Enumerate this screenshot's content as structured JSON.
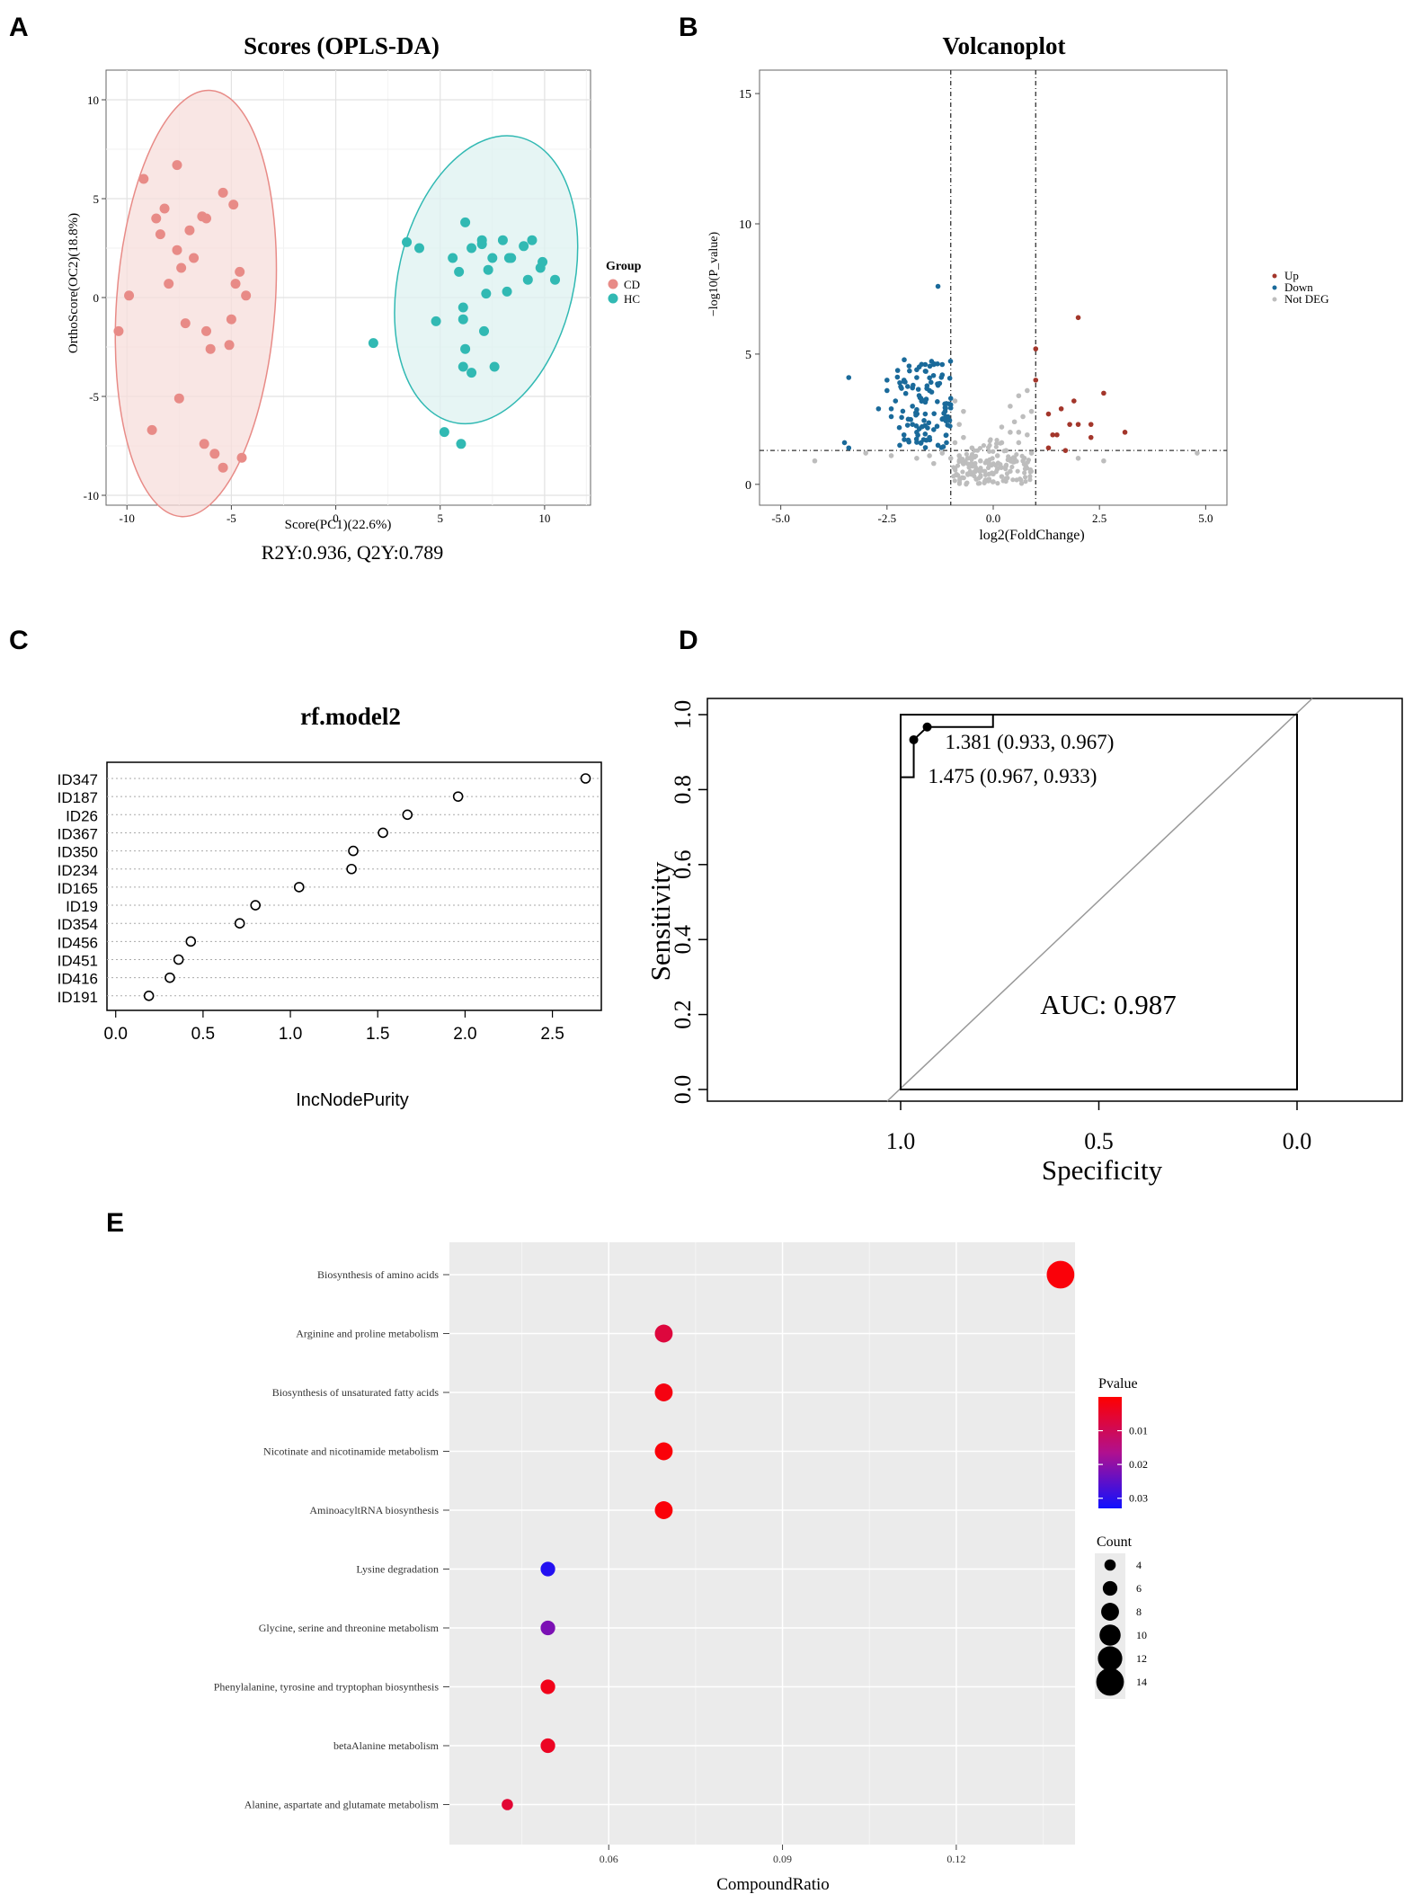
{
  "panel_labels": {
    "a": "A",
    "b": "B",
    "c": "C",
    "d": "D",
    "e": "E"
  },
  "colors": {
    "cd": "#E88B87",
    "hc": "#31B9B3",
    "ellipse_cd_fill": "#F7DDDB",
    "ellipse_hc_fill": "#DDF2F0",
    "up": "#A3362B",
    "down": "#1A6A9A",
    "not_deg": "#BDBDBD",
    "enrich_bg": "#EBEBEB",
    "pv_low": "#FF0000",
    "pv_high": "#1010FF"
  },
  "chart_data": [
    {
      "id": "A",
      "type": "scatter",
      "title": "Scores (OPLS-DA)",
      "xlabel": "Score(PC1)(22.6%)",
      "ylabel": "OrthoScore(OC2)(18.8%)",
      "xlim": [
        -11,
        12.2
      ],
      "ylim": [
        -10.5,
        11.5
      ],
      "xticks": [
        -10,
        -5,
        0,
        5,
        10
      ],
      "xtick_labels": [
        "-10",
        "-5",
        "0",
        "5",
        "10"
      ],
      "yticks": [
        -10,
        -5,
        0,
        5,
        10
      ],
      "ytick_labels": [
        "-10",
        "-5",
        "0",
        "5",
        "10"
      ],
      "grid": true,
      "legend": {
        "title": "Group",
        "position": "right",
        "entries": [
          "CD",
          "HC"
        ]
      },
      "caption": "R2Y:0.936, Q2Y:0.789",
      "ellipses": [
        {
          "group": "CD",
          "cx": -6.7,
          "cy": -0.3,
          "rx": 3.8,
          "ry": 10.8,
          "angle": 4
        },
        {
          "group": "HC",
          "cx": 7.2,
          "cy": 0.9,
          "rx": 4.2,
          "ry": 7.4,
          "angle": 13
        }
      ],
      "series": [
        {
          "name": "CD",
          "points": [
            [
              -9.2,
              6.0
            ],
            [
              -8.6,
              4.0
            ],
            [
              -8.4,
              3.2
            ],
            [
              -8.2,
              4.5
            ],
            [
              -7.6,
              6.7
            ],
            [
              -7.0,
              3.4
            ],
            [
              -7.6,
              2.4
            ],
            [
              -6.8,
              2.0
            ],
            [
              -6.4,
              4.1
            ],
            [
              -6.2,
              4.0
            ],
            [
              -5.4,
              5.3
            ],
            [
              -4.9,
              4.7
            ],
            [
              -7.4,
              1.5
            ],
            [
              -8.0,
              0.7
            ],
            [
              -4.6,
              1.3
            ],
            [
              -4.8,
              0.7
            ],
            [
              -4.3,
              0.1
            ],
            [
              -9.9,
              0.1
            ],
            [
              -10.4,
              -1.7
            ],
            [
              -7.2,
              -1.3
            ],
            [
              -6.2,
              -1.7
            ],
            [
              -6.0,
              -2.6
            ],
            [
              -5.0,
              -1.1
            ],
            [
              -5.1,
              -2.4
            ],
            [
              -7.5,
              -5.1
            ],
            [
              -8.8,
              -6.7
            ],
            [
              -6.3,
              -7.4
            ],
            [
              -5.8,
              -7.9
            ],
            [
              -4.5,
              -8.1
            ],
            [
              -5.4,
              -8.6
            ]
          ]
        },
        {
          "name": "HC",
          "points": [
            [
              1.8,
              -2.3
            ],
            [
              3.4,
              2.8
            ],
            [
              4.0,
              2.5
            ],
            [
              4.8,
              -1.2
            ],
            [
              5.2,
              -6.8
            ],
            [
              5.6,
              2.0
            ],
            [
              5.9,
              1.3
            ],
            [
              6.0,
              -7.4
            ],
            [
              6.2,
              3.8
            ],
            [
              6.5,
              2.5
            ],
            [
              6.1,
              -1.1
            ],
            [
              6.1,
              -0.5
            ],
            [
              6.2,
              -2.6
            ],
            [
              6.1,
              -3.5
            ],
            [
              6.5,
              -3.8
            ],
            [
              7.0,
              2.7
            ],
            [
              7.0,
              2.9
            ],
            [
              7.3,
              1.4
            ],
            [
              7.5,
              2.0
            ],
            [
              7.2,
              0.2
            ],
            [
              7.1,
              -1.7
            ],
            [
              7.6,
              -3.5
            ],
            [
              8.0,
              2.9
            ],
            [
              8.3,
              2.0
            ],
            [
              8.4,
              2.0
            ],
            [
              9.0,
              2.6
            ],
            [
              9.2,
              0.9
            ],
            [
              9.4,
              2.9
            ],
            [
              9.8,
              1.5
            ],
            [
              9.9,
              1.8
            ],
            [
              10.5,
              0.9
            ],
            [
              8.2,
              0.3
            ]
          ]
        }
      ]
    },
    {
      "id": "B",
      "type": "scatter",
      "title": "Volcanoplot",
      "xlabel": "log2(FoldChange)",
      "ylabel": "−log10(P_value)",
      "xlim": [
        -5.5,
        5.5
      ],
      "ylim": [
        -0.8,
        15.9
      ],
      "xticks": [
        -5,
        -2.5,
        0,
        2.5,
        5
      ],
      "xtick_labels": [
        "-5.0",
        "-2.5",
        "0.0",
        "2.5",
        "5.0"
      ],
      "yticks": [
        0,
        5,
        10,
        15
      ],
      "ytick_labels": [
        "0",
        "5",
        "10",
        "15"
      ],
      "grid": false,
      "thresholds": {
        "vertical": [
          -1,
          1
        ],
        "horizontal": 1.3
      },
      "legend": {
        "position": "right",
        "entries": [
          "Up",
          "Down",
          "Not DEG"
        ]
      },
      "series": [
        {
          "name": "Up",
          "points": [
            [
              1.0,
              5.2
            ],
            [
              1.0,
              4.0
            ],
            [
              1.3,
              2.7
            ],
            [
              1.4,
              1.9
            ],
            [
              1.6,
              2.9
            ],
            [
              1.5,
              1.9
            ],
            [
              1.7,
              1.3
            ],
            [
              1.8,
              2.3
            ],
            [
              1.9,
              3.2
            ],
            [
              2.0,
              2.3
            ],
            [
              2.0,
              6.4
            ],
            [
              2.3,
              2.3
            ],
            [
              2.3,
              1.8
            ],
            [
              2.6,
              3.5
            ],
            [
              3.1,
              2.0
            ],
            [
              1.3,
              1.4
            ]
          ]
        },
        {
          "name": "Down",
          "points": [
            [
              -3.4,
              4.1
            ],
            [
              -3.5,
              1.6
            ],
            [
              -3.4,
              1.4
            ],
            [
              -2.5,
              3.6
            ],
            [
              -2.4,
              2.6
            ],
            [
              -2.4,
              2.9
            ],
            [
              -2.2,
              3.9
            ],
            [
              -2.1,
              1.9
            ],
            [
              -2.0,
              2.5
            ],
            [
              -1.9,
              3.0
            ],
            [
              -1.8,
              4.4
            ],
            [
              -1.8,
              2.0
            ],
            [
              -1.7,
              1.6
            ],
            [
              -1.5,
              3.6
            ],
            [
              -1.4,
              2.1
            ],
            [
              -1.3,
              7.6
            ],
            [
              -1.2,
              4.2
            ],
            [
              -1.1,
              3.1
            ],
            [
              -2.5,
              4.0
            ],
            [
              -2.3,
              3.2
            ],
            [
              -2.1,
              4.0
            ],
            [
              -2.0,
              1.7
            ],
            [
              -1.9,
              2.3
            ],
            [
              -1.9,
              3.7
            ],
            [
              -1.8,
              4.1
            ],
            [
              -1.7,
              3.3
            ],
            [
              -1.6,
              4.6
            ],
            [
              -1.5,
              1.8
            ],
            [
              -1.4,
              4.6
            ],
            [
              -1.3,
              3.8
            ],
            [
              -1.2,
              2.5
            ],
            [
              -1.2,
              4.6
            ],
            [
              -1.1,
              1.6
            ],
            [
              -1.0,
              3.3
            ],
            [
              -2.7,
              2.9
            ],
            [
              -2.2,
              1.5
            ],
            [
              -1.6,
              2.7
            ],
            [
              -1.3,
              1.5
            ]
          ]
        },
        {
          "name": "Not DEG",
          "points": [
            [
              -4.2,
              0.9
            ],
            [
              -3.0,
              1.2
            ],
            [
              -2.4,
              1.1
            ],
            [
              -1.8,
              1.0
            ],
            [
              -1.5,
              1.1
            ],
            [
              -1.2,
              1.2
            ],
            [
              -1.0,
              1.0
            ],
            [
              -0.9,
              3.2
            ],
            [
              -0.9,
              1.6
            ],
            [
              -0.8,
              2.3
            ],
            [
              -0.8,
              1.1
            ],
            [
              -0.7,
              1.8
            ],
            [
              -0.6,
              1.0
            ],
            [
              -0.6,
              0.4
            ],
            [
              -0.5,
              0.7
            ],
            [
              -0.5,
              1.4
            ],
            [
              -0.4,
              0.6
            ],
            [
              -0.4,
              0.2
            ],
            [
              -0.3,
              0.9
            ],
            [
              -0.3,
              0.3
            ],
            [
              -0.2,
              0.5
            ],
            [
              -0.2,
              0.1
            ],
            [
              -0.1,
              0.8
            ],
            [
              -0.1,
              0.2
            ],
            [
              0.0,
              0.4
            ],
            [
              0.0,
              0.1
            ],
            [
              0.1,
              0.6
            ],
            [
              0.1,
              1.1
            ],
            [
              0.2,
              0.3
            ],
            [
              0.2,
              1.6
            ],
            [
              0.3,
              0.7
            ],
            [
              0.3,
              1.3
            ],
            [
              0.4,
              0.5
            ],
            [
              0.4,
              2.0
            ],
            [
              0.5,
              1.0
            ],
            [
              0.5,
              2.4
            ],
            [
              0.6,
              1.6
            ],
            [
              0.6,
              3.4
            ],
            [
              0.7,
              0.9
            ],
            [
              0.7,
              2.6
            ],
            [
              0.8,
              1.9
            ],
            [
              0.8,
              3.6
            ],
            [
              0.9,
              2.8
            ],
            [
              0.9,
              1.2
            ],
            [
              -0.7,
              2.8
            ],
            [
              -0.9,
              0.6
            ],
            [
              -1.4,
              0.8
            ],
            [
              0.2,
              2.2
            ],
            [
              0.4,
              3.0
            ],
            [
              0.6,
              2.0
            ],
            [
              2.0,
              1.0
            ],
            [
              2.6,
              0.9
            ],
            [
              4.8,
              1.2
            ]
          ]
        }
      ]
    },
    {
      "id": "C",
      "type": "scatter",
      "title": "rf.model2",
      "xlabel": "IncNodePurity",
      "xlim": [
        -0.05,
        2.78
      ],
      "xticks": [
        0,
        0.5,
        1,
        1.5,
        2,
        2.5
      ],
      "xtick_labels": [
        "0.0",
        "0.5",
        "1.0",
        "1.5",
        "2.0",
        "2.5"
      ],
      "categories": [
        "ID347",
        "ID187",
        "ID26",
        "ID367",
        "ID350",
        "ID234",
        "ID165",
        "ID19",
        "ID354",
        "ID456",
        "ID451",
        "ID416",
        "ID191"
      ],
      "values": [
        2.69,
        1.96,
        1.67,
        1.53,
        1.36,
        1.35,
        1.05,
        0.8,
        0.71,
        0.43,
        0.36,
        0.31,
        0.19
      ]
    },
    {
      "id": "D",
      "type": "line",
      "xlabel": "Specificity",
      "ylabel": "Sensitivity",
      "xlim": [
        1.0,
        0.0
      ],
      "ylim": [
        0.0,
        1.0
      ],
      "xticks": [
        1.0,
        0.5,
        0.0
      ],
      "xtick_labels": [
        "1.0",
        "0.5",
        "0.0"
      ],
      "yticks": [
        0,
        0.2,
        0.4,
        0.6,
        0.8,
        1.0
      ],
      "ytick_labels": [
        "0.0",
        "0.2",
        "0.4",
        "0.6",
        "0.8",
        "1.0"
      ],
      "auc_label": "AUC: 0.987",
      "roc_specificity": [
        1.0,
        1.0,
        0.967,
        0.967,
        0.933,
        0.933,
        0.767,
        0.767,
        0.0
      ],
      "roc_sensitivity": [
        0.0,
        0.833,
        0.833,
        0.933,
        0.967,
        0.967,
        0.967,
        1.0,
        1.0
      ],
      "annotations": [
        {
          "spec": 0.933,
          "sens": 0.967,
          "label": "1.381 (0.933, 0.967)"
        },
        {
          "spec": 0.967,
          "sens": 0.933,
          "label": "1.475 (0.967, 0.933)"
        }
      ]
    },
    {
      "id": "E",
      "type": "scatter",
      "xlabel": "CompoundRatio",
      "xlim": [
        0.0325,
        0.1405
      ],
      "xticks": [
        0.06,
        0.09,
        0.12
      ],
      "xtick_labels": [
        "0.06",
        "0.09",
        "0.12"
      ],
      "categories": [
        "Biosynthesis of amino acids",
        "Arginine and proline metabolism",
        "Biosynthesis of unsaturated fatty acids",
        "Nicotinate and nicotinamide metabolism",
        "AminoacyltRNA biosynthesis",
        "Lysine degradation",
        "Glycine, serine and threonine metabolism",
        "Phenylalanine, tyrosine and tryptophan biosynthesis",
        "betaAlanine metabolism",
        "Alanine, aspartate and glutamate metabolism"
      ],
      "values": [
        0.138,
        0.0695,
        0.0695,
        0.0695,
        0.0695,
        0.0495,
        0.0495,
        0.0495,
        0.0495,
        0.0425
      ],
      "counts": [
        14,
        8,
        8,
        8,
        8,
        6,
        6,
        6,
        6,
        4
      ],
      "pvalues": [
        0.001,
        0.007,
        0.002,
        0.001,
        0.001,
        0.031,
        0.022,
        0.003,
        0.004,
        0.006
      ],
      "legend_pvalue": {
        "title": "Pvalue",
        "ticks": [
          0.01,
          0.02,
          0.03
        ],
        "tick_labels": [
          "0.01",
          "0.02",
          "0.03"
        ],
        "range": [
          0.0,
          0.033
        ]
      },
      "legend_count": {
        "title": "Count",
        "values": [
          4,
          6,
          8,
          10,
          12,
          14
        ],
        "labels": [
          "4",
          "6",
          "8",
          "10",
          "12",
          "14"
        ]
      }
    }
  ]
}
